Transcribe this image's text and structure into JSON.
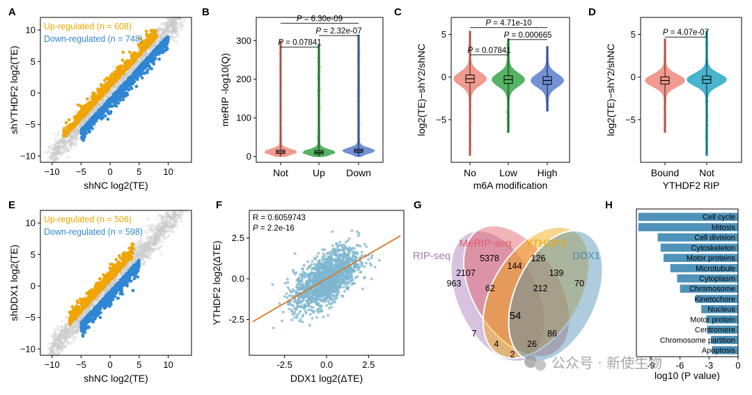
{
  "chart_data": [
    {
      "panel": "A",
      "type": "scatter",
      "xlabel": "shNC log2(TE)",
      "ylabel": "shYTHDF2 log2(TE)",
      "xlim": [
        -12,
        14
      ],
      "ylim": [
        -11,
        12
      ],
      "xticks": [
        -10,
        -5,
        0,
        5,
        10
      ],
      "yticks": [
        -10,
        -5,
        0,
        5,
        10
      ],
      "legend": [
        {
          "name": "Up-regulated (n = 608)",
          "color": "#f0a500",
          "n": 608
        },
        {
          "name": "Down-regulated (n = 748)",
          "color": "#2f86d4",
          "n": 748
        }
      ],
      "background_color": "#c8c8c8"
    },
    {
      "panel": "B",
      "type": "violin",
      "ylabel": "meRIP -log10(Q)",
      "ylim": [
        -15,
        360
      ],
      "yticks": [
        0,
        100,
        200,
        300
      ],
      "categories": [
        "Not",
        "Up",
        "Down"
      ],
      "colors": [
        "#ee8a7c",
        "#3aa64a",
        "#5b7fcf"
      ],
      "medians": [
        12,
        11,
        15
      ],
      "whisker_max": [
        300,
        290,
        315
      ],
      "pvalues": [
        {
          "pair": [
            0,
            1
          ],
          "label": "P = 0.07841",
          "y": 283
        },
        {
          "pair": [
            1,
            2
          ],
          "label": "P = 2.32e-07",
          "y": 313
        },
        {
          "pair": [
            0,
            2
          ],
          "label": "P = 6.30e-09",
          "y": 345
        }
      ]
    },
    {
      "panel": "C",
      "type": "violin",
      "xlabel": "m6A modification",
      "ylabel": "log2(TE)−shY2/shNC",
      "ylim": [
        -10,
        7
      ],
      "yticks": [
        -5,
        0,
        5
      ],
      "categories": [
        "No",
        "Low",
        "High"
      ],
      "colors": [
        "#ee8a7c",
        "#3aa64a",
        "#5b7fcf"
      ],
      "medians": [
        -0.2,
        -0.3,
        -0.4
      ],
      "whisker_max": [
        5.4,
        4.5,
        3.6
      ],
      "whisker_min": [
        -9.2,
        -6.5,
        -4.0
      ],
      "pvalues": [
        {
          "pair": [
            0,
            1
          ],
          "label": "P = 0.07841",
          "y": 2.6
        },
        {
          "pair": [
            1,
            2
          ],
          "label": "P = 0.000665",
          "y": 4.4
        },
        {
          "pair": [
            0,
            2
          ],
          "label": "P = 4.71e-10",
          "y": 5.8
        }
      ]
    },
    {
      "panel": "D",
      "type": "violin",
      "xlabel": "YTHDF2 RIP",
      "ylabel": "log2(TE)−shY2/shNC",
      "ylim": [
        -10,
        7
      ],
      "yticks": [
        -5,
        0,
        5
      ],
      "categories": [
        "Bound",
        "Not"
      ],
      "colors": [
        "#ee8a7c",
        "#29a8c4"
      ],
      "medians": [
        -0.4,
        -0.3
      ],
      "whisker_max": [
        4.5,
        5.4
      ],
      "whisker_min": [
        -6.5,
        -9.2
      ],
      "pvalues": [
        {
          "pair": [
            0,
            1
          ],
          "label": "P = 4.07e-07",
          "y": 4.7
        }
      ]
    },
    {
      "panel": "E",
      "type": "scatter",
      "xlabel": "shNC log2(TE)",
      "ylabel": "shDDX1 log2(TE)",
      "xlim": [
        -12,
        14
      ],
      "ylim": [
        -11,
        12
      ],
      "xticks": [
        -10,
        -5,
        0,
        5,
        10
      ],
      "yticks": [
        -10,
        -5,
        0,
        5,
        10
      ],
      "legend": [
        {
          "name": "Up-regulated (n = 506)",
          "color": "#f0a500",
          "n": 506
        },
        {
          "name": "Down-regulated (n = 598)",
          "color": "#2f86d4",
          "n": 598
        }
      ],
      "background_color": "#c8c8c8"
    },
    {
      "panel": "F",
      "type": "scatter",
      "xlabel": "DDX1 log2(ΔTE)",
      "ylabel": "YTHDF2 log2(ΔTE)",
      "xlim": [
        -4.6,
        4.6
      ],
      "ylim": [
        -4.7,
        4.2
      ],
      "xticks": [
        -2.5,
        0.0,
        2.5
      ],
      "yticks": [
        -2.5,
        0.0,
        2.5
      ],
      "xtick_labels": [
        "-2.5",
        "0.0",
        "2.5"
      ],
      "ytick_labels": [
        "-2.5",
        "0.0",
        "2.5"
      ],
      "annotations": [
        "R = 0.6059743",
        "P = 2.2e-16"
      ],
      "point_color": "#7eb6cf",
      "fit_color": "#d9782a",
      "fit_line": {
        "slope": 0.6,
        "intercept": 0.0,
        "x_range": [
          -4.4,
          4.4
        ]
      }
    },
    {
      "panel": "G",
      "type": "venn",
      "sets": [
        {
          "name": "RIP-seq",
          "color": "#a877b8"
        },
        {
          "name": "MeRIP-seq",
          "color": "#e25b66"
        },
        {
          "name": "YTHDF2",
          "color": "#f0a500"
        },
        {
          "name": "DDX1",
          "color": "#4b8fb3"
        }
      ],
      "regions": [
        {
          "value": 963,
          "sets": [
            "RIP-seq"
          ]
        },
        {
          "value": 5378,
          "sets": [
            "MeRIP-seq"
          ]
        },
        {
          "value": 126,
          "sets": [
            "YTHDF2"
          ]
        },
        {
          "value": 70,
          "sets": [
            "DDX1"
          ]
        },
        {
          "value": 2107,
          "sets": [
            "RIP-seq",
            "MeRIP-seq"
          ]
        },
        {
          "value": 144,
          "sets": [
            "MeRIP-seq",
            "YTHDF2"
          ]
        },
        {
          "value": 139,
          "sets": [
            "YTHDF2",
            "DDX1"
          ]
        },
        {
          "value": 62,
          "sets": [
            "RIP-seq",
            "MeRIP-seq",
            "YTHDF2"
          ]
        },
        {
          "value": 212,
          "sets": [
            "MeRIP-seq",
            "YTHDF2",
            "DDX1"
          ]
        },
        {
          "value": 54,
          "sets": [
            "RIP-seq",
            "MeRIP-seq",
            "YTHDF2",
            "DDX1"
          ]
        },
        {
          "value": 7,
          "sets": [
            "RIP-seq",
            "YTHDF2"
          ]
        },
        {
          "value": 4,
          "sets": [
            "RIP-seq",
            "YTHDF2",
            "DDX1"
          ]
        },
        {
          "value": 26,
          "sets": [
            "RIP-seq",
            "MeRIP-seq",
            "DDX1"
          ]
        },
        {
          "value": 86,
          "sets": [
            "MeRIP-seq",
            "DDX1"
          ]
        },
        {
          "value": 2,
          "sets": [
            "RIP-seq",
            "DDX1"
          ]
        }
      ]
    },
    {
      "panel": "H",
      "type": "bar",
      "orientation": "horizontal",
      "xlabel": "log10 (P value)",
      "xlim": [
        -10.5,
        0
      ],
      "xticks": [
        -9,
        -6,
        -3,
        0
      ],
      "xtick_labels": [
        "-9",
        "-6",
        "-3",
        "0"
      ],
      "bar_color": "#4f93ba",
      "categories": [
        "Cell cycle",
        "Mitosis",
        "Cell division",
        "Cytoskeleton",
        "Motor proteins",
        "Microtubule",
        "Cytoplasm",
        "Chromosome",
        "Kinetochore",
        "Nucleus",
        "Motor protein",
        "Centromere",
        "Chromosome partition",
        "Apoptosis"
      ],
      "values": [
        -10.3,
        -10.3,
        -8.3,
        -8.0,
        -7.7,
        -7.0,
        -6.3,
        -6.0,
        -4.4,
        -3.8,
        -3.3,
        -3.2,
        -2.8,
        -2.7
      ]
    }
  ],
  "panel_letters": [
    "A",
    "B",
    "C",
    "D",
    "E",
    "F",
    "G",
    "H"
  ],
  "watermark": "公众号 · 新使生物"
}
